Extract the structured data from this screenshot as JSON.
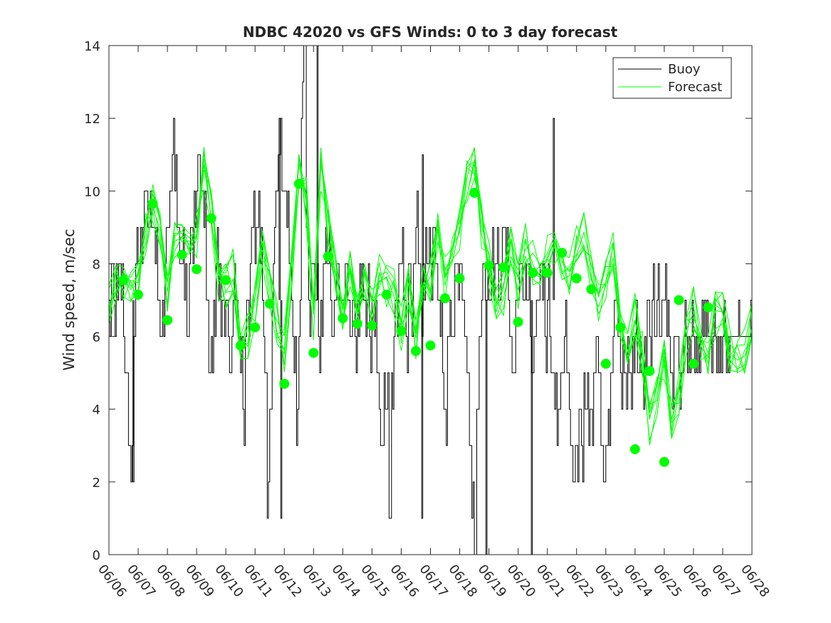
{
  "chart_data": {
    "type": "line",
    "title": "NDBC 42020 vs GFS Winds: 0 to 3 day forecast",
    "xlabel": "",
    "ylabel": "Wind speed, m/sec",
    "xlim": [
      0,
      22
    ],
    "ylim": [
      0,
      14
    ],
    "x_tick_labels": [
      "06/06",
      "06/07",
      "06/08",
      "06/09",
      "06/10",
      "06/11",
      "06/12",
      "06/13",
      "06/14",
      "06/15",
      "06/16",
      "06/17",
      "06/18",
      "06/19",
      "06/20",
      "06/21",
      "06/22",
      "06/23",
      "06/24",
      "06/25",
      "06/26",
      "06/27",
      "06/28"
    ],
    "y_ticks": [
      0,
      2,
      4,
      6,
      8,
      10,
      12,
      14
    ],
    "y_tick_labels": [
      "0",
      "2",
      "4",
      "6",
      "8",
      "10",
      "12",
      "14"
    ],
    "legend": {
      "position": "top-right",
      "entries": [
        "Buoy",
        "Forecast"
      ]
    },
    "colors": {
      "buoy": "#000000",
      "forecast": "#00ff00"
    },
    "grid": false,
    "buoy_day_values": [
      [
        7,
        8,
        7,
        8,
        8,
        7,
        6,
        5,
        3,
        2,
        6,
        8
      ],
      [
        8,
        9,
        9,
        10,
        9,
        10,
        9,
        8,
        7,
        6,
        7,
        8
      ],
      [
        9,
        10,
        11,
        10,
        9,
        8,
        8,
        7,
        6,
        8,
        9,
        10
      ],
      [
        10,
        11,
        10,
        9,
        7,
        5,
        6,
        7,
        8,
        7,
        6,
        7
      ],
      [
        7,
        6,
        5,
        7,
        7,
        6,
        5,
        4,
        6,
        7,
        8,
        9
      ],
      [
        8,
        9,
        8,
        7,
        5,
        1,
        4,
        7,
        9,
        10,
        11,
        10
      ],
      [
        10,
        9,
        8,
        7,
        5,
        3,
        6,
        12,
        14,
        9,
        7,
        8
      ],
      [
        8,
        7,
        6,
        7,
        8,
        9,
        8,
        7,
        6,
        7,
        8,
        7
      ],
      [
        7,
        8,
        7,
        6,
        7,
        6,
        7,
        8,
        8,
        7,
        7,
        6
      ],
      [
        7,
        6,
        5,
        4,
        3,
        5,
        4,
        1,
        5,
        6,
        7,
        8
      ],
      [
        8,
        7,
        6,
        8,
        7,
        8,
        9,
        8,
        7,
        8,
        9,
        8
      ],
      [
        8,
        9,
        8,
        7,
        6,
        5,
        4,
        6,
        7,
        6,
        8,
        8
      ],
      [
        8,
        7,
        6,
        5,
        3,
        1,
        0,
        4,
        6,
        7,
        8,
        7
      ],
      [
        7,
        8,
        7,
        8,
        7,
        8,
        9,
        8,
        7,
        6,
        5,
        7
      ],
      [
        7,
        8,
        7,
        8,
        7,
        6,
        5,
        6,
        7,
        8,
        7,
        6
      ],
      [
        7,
        6,
        5,
        4,
        3,
        4,
        5,
        6,
        5,
        4,
        3,
        2
      ],
      [
        3,
        4,
        3,
        5,
        4,
        3,
        4,
        5,
        6,
        5,
        3,
        2
      ],
      [
        3,
        4,
        5,
        6,
        7,
        6,
        5,
        6,
        5,
        6,
        5,
        6
      ],
      [
        6,
        5,
        6,
        5,
        6,
        7,
        6,
        7,
        6,
        7,
        6,
        7
      ],
      [
        7,
        6,
        6,
        5,
        6,
        6,
        5,
        5,
        6,
        6,
        6,
        6
      ],
      [
        6,
        6,
        6,
        6,
        6,
        6,
        6,
        6,
        6,
        6,
        6,
        6
      ],
      [
        6,
        6,
        6,
        6,
        6,
        6,
        6,
        6,
        6,
        6,
        6,
        6
      ]
    ],
    "buoy_spikes": [
      {
        "x": 0.82,
        "y": 2
      },
      {
        "x": 5.82,
        "y": 12
      },
      {
        "x": 5.88,
        "y": 1
      },
      {
        "x": 7.12,
        "y": 14
      },
      {
        "x": 10.72,
        "y": 11
      },
      {
        "x": 10.7,
        "y": 1
      },
      {
        "x": 14.45,
        "y": 0
      },
      {
        "x": 15.2,
        "y": 12
      },
      {
        "x": 12.9,
        "y": 0
      }
    ],
    "forecast_points": [
      [
        0.0,
        7.0
      ],
      [
        0.25,
        7.4
      ],
      [
        0.5,
        7.6
      ],
      [
        0.75,
        7.3
      ],
      [
        1.0,
        7.6
      ],
      [
        1.25,
        8.8
      ],
      [
        1.5,
        9.7
      ],
      [
        1.75,
        9.0
      ],
      [
        2.0,
        7.2
      ],
      [
        2.25,
        8.6
      ],
      [
        2.5,
        8.6
      ],
      [
        2.75,
        8.2
      ],
      [
        3.0,
        8.8
      ],
      [
        3.25,
        10.6
      ],
      [
        3.5,
        9.4
      ],
      [
        3.75,
        7.4
      ],
      [
        4.0,
        7.4
      ],
      [
        4.25,
        7.8
      ],
      [
        4.5,
        5.8
      ],
      [
        4.75,
        6.0
      ],
      [
        5.0,
        6.8
      ],
      [
        5.25,
        8.6
      ],
      [
        5.5,
        7.2
      ],
      [
        5.75,
        6.4
      ],
      [
        6.0,
        5.6
      ],
      [
        6.25,
        7.8
      ],
      [
        6.5,
        10.6
      ],
      [
        6.75,
        9.8
      ],
      [
        7.0,
        6.4
      ],
      [
        7.25,
        10.6
      ],
      [
        7.5,
        9.0
      ],
      [
        7.75,
        7.8
      ],
      [
        8.0,
        6.8
      ],
      [
        8.25,
        8.0
      ],
      [
        8.5,
        6.6
      ],
      [
        8.75,
        7.6
      ],
      [
        9.0,
        6.8
      ],
      [
        9.25,
        7.8
      ],
      [
        9.5,
        7.4
      ],
      [
        9.75,
        7.2
      ],
      [
        10.0,
        6.2
      ],
      [
        10.25,
        7.4
      ],
      [
        10.5,
        6.0
      ],
      [
        10.75,
        7.4
      ],
      [
        11.0,
        7.6
      ],
      [
        11.25,
        8.8
      ],
      [
        11.5,
        7.6
      ],
      [
        11.75,
        8.2
      ],
      [
        12.0,
        9.0
      ],
      [
        12.25,
        10.2
      ],
      [
        12.5,
        10.6
      ],
      [
        12.75,
        9.0
      ],
      [
        13.0,
        8.0
      ],
      [
        13.25,
        7.0
      ],
      [
        13.5,
        7.2
      ],
      [
        13.75,
        8.6
      ],
      [
        14.0,
        7.4
      ],
      [
        14.25,
        8.6
      ],
      [
        14.5,
        8.0
      ],
      [
        14.75,
        7.8
      ],
      [
        15.0,
        8.2
      ],
      [
        15.25,
        8.6
      ],
      [
        15.5,
        8.2
      ],
      [
        15.75,
        7.8
      ],
      [
        16.0,
        8.6
      ],
      [
        16.25,
        9.0
      ],
      [
        16.5,
        7.8
      ],
      [
        16.75,
        7.0
      ],
      [
        17.0,
        7.6
      ],
      [
        17.25,
        8.4
      ],
      [
        17.5,
        6.4
      ],
      [
        17.75,
        5.8
      ],
      [
        18.0,
        6.6
      ],
      [
        18.25,
        5.6
      ],
      [
        18.5,
        3.6
      ],
      [
        18.75,
        4.4
      ],
      [
        19.0,
        5.4
      ],
      [
        19.25,
        3.8
      ],
      [
        19.5,
        4.4
      ],
      [
        19.75,
        6.0
      ],
      [
        20.0,
        6.8
      ],
      [
        20.25,
        5.8
      ],
      [
        20.5,
        5.6
      ],
      [
        20.75,
        6.6
      ],
      [
        21.0,
        7.0
      ],
      [
        21.25,
        5.6
      ],
      [
        21.5,
        5.6
      ],
      [
        21.75,
        5.6
      ],
      [
        22.0,
        6.4
      ]
    ],
    "forecast_runs": 8,
    "analysis_dots": [
      [
        0.5,
        7.55
      ],
      [
        1.0,
        7.15
      ],
      [
        1.5,
        9.65
      ],
      [
        2.0,
        6.45
      ],
      [
        2.5,
        8.25
      ],
      [
        3.0,
        7.85
      ],
      [
        3.5,
        9.25
      ],
      [
        4.0,
        7.55
      ],
      [
        4.5,
        5.75
      ],
      [
        5.0,
        6.25
      ],
      [
        5.5,
        6.9
      ],
      [
        6.0,
        4.7
      ],
      [
        6.5,
        10.2
      ],
      [
        7.0,
        5.55
      ],
      [
        7.5,
        8.2
      ],
      [
        8.0,
        6.5
      ],
      [
        8.5,
        6.35
      ],
      [
        9.0,
        6.3
      ],
      [
        9.5,
        7.15
      ],
      [
        10.0,
        6.15
      ],
      [
        10.5,
        5.6
      ],
      [
        11.0,
        5.75
      ],
      [
        11.5,
        7.05
      ],
      [
        12.0,
        7.6
      ],
      [
        12.5,
        9.95
      ],
      [
        13.0,
        7.95
      ],
      [
        13.5,
        7.9
      ],
      [
        14.0,
        6.4
      ],
      [
        14.5,
        7.75
      ],
      [
        15.0,
        7.75
      ],
      [
        15.5,
        8.3
      ],
      [
        16.0,
        7.6
      ],
      [
        16.5,
        7.3
      ],
      [
        17.0,
        5.25
      ],
      [
        17.5,
        6.25
      ],
      [
        18.0,
        2.9
      ],
      [
        18.5,
        5.05
      ],
      [
        19.0,
        2.55
      ],
      [
        19.5,
        7.0
      ],
      [
        20.0,
        5.25
      ],
      [
        20.5,
        6.8
      ]
    ]
  }
}
